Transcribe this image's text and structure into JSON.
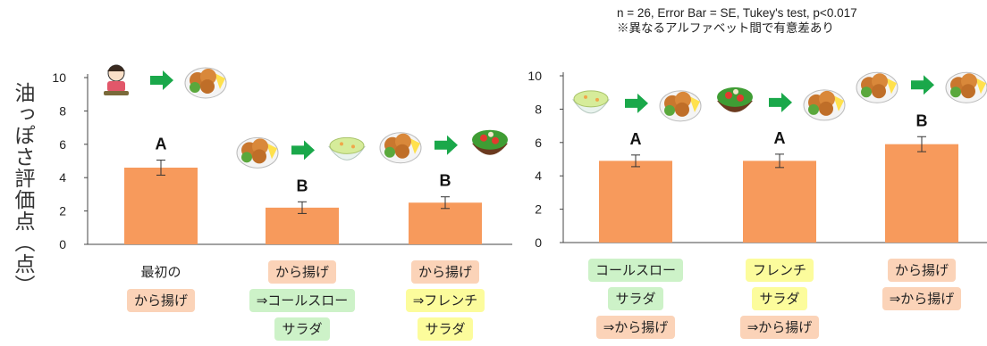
{
  "y_axis_label": "油っぽさ評価点（点）",
  "note": [
    "n = 26, Error Bar = SE, Tukey's test, p<0.017",
    "※異なるアルファベット間で有意差あり"
  ],
  "colors": {
    "bar": "#f79a5c",
    "peach": "#fbd3b8",
    "green": "#cdf2c8",
    "yellow": "#fcfc9c"
  },
  "chart_data": [
    {
      "type": "bar",
      "ylim": [
        0,
        10
      ],
      "yticks": [
        0,
        2,
        4,
        6,
        8,
        10
      ],
      "categories": [
        {
          "lines": [
            {
              "text": "最初の",
              "style": "none"
            },
            {
              "text": "から揚げ",
              "style": "peach"
            }
          ]
        },
        {
          "lines": [
            {
              "text": "から揚げ",
              "style": "peach"
            },
            {
              "text": "⇒コールスロー",
              "style": "green"
            },
            {
              "text": "サラダ",
              "style": "green"
            }
          ]
        },
        {
          "lines": [
            {
              "text": "から揚げ",
              "style": "peach"
            },
            {
              "text": "⇒フレンチ",
              "style": "yellow"
            },
            {
              "text": "サラダ",
              "style": "yellow"
            }
          ]
        }
      ],
      "values": [
        4.6,
        2.2,
        2.5
      ],
      "errors": [
        0.45,
        0.35,
        0.35
      ],
      "letters": [
        "A",
        "B",
        "B"
      ]
    },
    {
      "type": "bar",
      "ylim": [
        0,
        10
      ],
      "yticks": [
        0,
        2,
        4,
        6,
        8,
        10
      ],
      "categories": [
        {
          "lines": [
            {
              "text": "コールスロー",
              "style": "green"
            },
            {
              "text": "サラダ",
              "style": "green"
            },
            {
              "text": "⇒から揚げ",
              "style": "peach"
            }
          ]
        },
        {
          "lines": [
            {
              "text": "フレンチ",
              "style": "yellow"
            },
            {
              "text": "サラダ",
              "style": "yellow"
            },
            {
              "text": "⇒から揚げ",
              "style": "peach"
            }
          ]
        },
        {
          "lines": [
            {
              "text": "から揚げ",
              "style": "peach"
            },
            {
              "text": "⇒から揚げ",
              "style": "peach"
            }
          ]
        }
      ],
      "values": [
        4.9,
        4.9,
        5.9
      ],
      "errors": [
        0.35,
        0.4,
        0.45
      ],
      "letters": [
        "A",
        "A",
        "B"
      ]
    }
  ],
  "icons": [
    {
      "chart": 0,
      "bar": 0,
      "items": [
        "person-eating-icon",
        "arrow-right-icon",
        "karaage-plate-icon"
      ]
    },
    {
      "chart": 0,
      "bar": 1,
      "items": [
        "karaage-plate-icon",
        "arrow-right-icon",
        "coleslaw-bowl-icon"
      ]
    },
    {
      "chart": 0,
      "bar": 2,
      "items": [
        "karaage-plate-icon",
        "arrow-right-icon",
        "green-salad-bowl-icon"
      ]
    },
    {
      "chart": 1,
      "bar": 0,
      "items": [
        "coleslaw-bowl-icon",
        "arrow-right-icon",
        "karaage-plate-icon"
      ]
    },
    {
      "chart": 1,
      "bar": 1,
      "items": [
        "green-salad-bowl-icon",
        "arrow-right-icon",
        "karaage-plate-icon"
      ]
    },
    {
      "chart": 1,
      "bar": 2,
      "items": [
        "karaage-plate-icon",
        "arrow-right-icon",
        "karaage-plate-icon"
      ]
    }
  ]
}
